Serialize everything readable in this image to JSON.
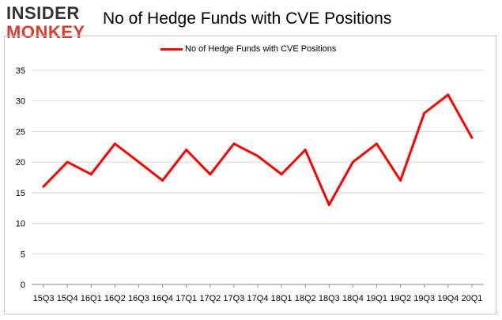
{
  "logo": {
    "line1": "INSIDER",
    "line2": "MONKEY"
  },
  "colors": {
    "line": "#ff0000",
    "grid": "#d9d9d9",
    "axis": "#8c8c8c",
    "logo_accent": "#e03a2f"
  },
  "chart_data": {
    "type": "line",
    "title": "No of Hedge Funds with CVE Positions",
    "xlabel": "",
    "ylabel": "",
    "categories": [
      "15Q3",
      "15Q4",
      "16Q1",
      "16Q2",
      "16Q3",
      "16Q4",
      "17Q1",
      "17Q2",
      "17Q3",
      "17Q4",
      "18Q1",
      "18Q2",
      "18Q3",
      "18Q4",
      "19Q1",
      "19Q2",
      "19Q3",
      "19Q4",
      "20Q1"
    ],
    "series": [
      {
        "name": "No of Hedge Funds with CVE Positions",
        "values": [
          16,
          20,
          18,
          23,
          20,
          17,
          22,
          18,
          23,
          21,
          18,
          22,
          13,
          20,
          23,
          17,
          28,
          31,
          24
        ]
      }
    ],
    "ylim": [
      0,
      35
    ],
    "yticks": [
      0,
      5,
      10,
      15,
      20,
      25,
      30,
      35
    ],
    "grid": true,
    "legend": "top-center"
  }
}
